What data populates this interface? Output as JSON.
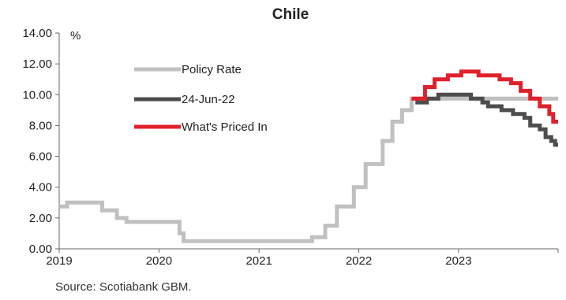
{
  "chart_data": {
    "type": "line",
    "title": "Chile",
    "ylabel": "%",
    "xlabel": "",
    "ylim": [
      0,
      14
    ],
    "xlim": [
      "2019-01-01",
      "2023-12-31"
    ],
    "y_ticks": [
      "0.00",
      "2.00",
      "4.00",
      "6.00",
      "8.00",
      "10.00",
      "12.00",
      "14.00"
    ],
    "x_ticks": [
      "2019",
      "2020",
      "2021",
      "2022",
      "2023"
    ],
    "legend_position": "left",
    "grid": false,
    "series": [
      {
        "name": "Policy Rate",
        "color": "#c0c0c0",
        "step": true,
        "points": [
          [
            "2019-01-01",
            2.75
          ],
          [
            "2019-01-30",
            3.0
          ],
          [
            "2019-06-07",
            2.5
          ],
          [
            "2019-07-31",
            2.0
          ],
          [
            "2019-09-04",
            1.75
          ],
          [
            "2020-03-16",
            1.0
          ],
          [
            "2020-03-31",
            0.5
          ],
          [
            "2021-07-14",
            0.75
          ],
          [
            "2021-08-31",
            1.5
          ],
          [
            "2021-10-13",
            2.75
          ],
          [
            "2021-12-14",
            4.0
          ],
          [
            "2022-01-26",
            5.5
          ],
          [
            "2022-03-29",
            7.0
          ],
          [
            "2022-05-04",
            8.25
          ],
          [
            "2022-06-08",
            9.0
          ],
          [
            "2022-07-13",
            9.75
          ]
        ]
      },
      {
        "name": "24-Jun-22",
        "color": "#4d4d4d",
        "step": true,
        "points": [
          [
            "2022-07-27",
            9.5
          ],
          [
            "2022-09-07",
            9.75
          ],
          [
            "2022-10-19",
            10.0
          ],
          [
            "2023-02-15",
            9.75
          ],
          [
            "2023-03-29",
            9.5
          ],
          [
            "2023-04-19",
            9.25
          ],
          [
            "2023-06-07",
            9.0
          ],
          [
            "2023-07-19",
            8.75
          ],
          [
            "2023-08-30",
            8.5
          ],
          [
            "2023-09-20",
            8.0
          ],
          [
            "2023-10-25",
            7.75
          ],
          [
            "2023-11-15",
            7.25
          ],
          [
            "2023-12-06",
            7.0
          ],
          [
            "2023-12-20",
            6.75
          ]
        ]
      },
      {
        "name": "What's Priced In",
        "color": "#e0202c",
        "step": true,
        "points": [
          [
            "2022-07-13",
            9.75
          ],
          [
            "2022-08-31",
            10.5
          ],
          [
            "2022-10-05",
            11.0
          ],
          [
            "2022-11-23",
            11.25
          ],
          [
            "2023-01-11",
            11.5
          ],
          [
            "2023-03-15",
            11.25
          ],
          [
            "2023-05-31",
            11.0
          ],
          [
            "2023-07-12",
            10.75
          ],
          [
            "2023-08-16",
            10.25
          ],
          [
            "2023-09-20",
            9.75
          ],
          [
            "2023-10-25",
            9.25
          ],
          [
            "2023-11-29",
            8.75
          ],
          [
            "2023-12-13",
            8.25
          ]
        ]
      }
    ]
  },
  "source": "Source: Scotiabank GBM."
}
